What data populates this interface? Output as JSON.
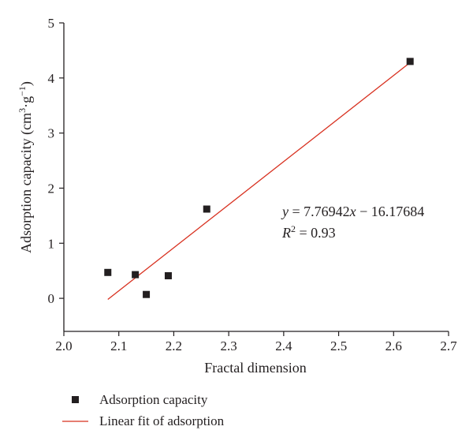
{
  "chart_data": {
    "type": "scatter",
    "xlabel": "Fractal dimension",
    "ylabel": {
      "prefix": "Adsorption capacity (cm",
      "sup1": "3",
      "mid": "·g",
      "sup2": "−1",
      "suffix": ")"
    },
    "xlim": [
      2.0,
      2.7
    ],
    "ylim": [
      -0.6,
      5
    ],
    "xticks": [
      "2.0",
      "2.1",
      "2.2",
      "2.3",
      "2.4",
      "2.5",
      "2.6",
      "2.7"
    ],
    "yticks": [
      "0",
      "1",
      "2",
      "3",
      "4",
      "5"
    ],
    "grid": false,
    "legend_position": "bottom-left, below the plot",
    "series": [
      {
        "name": "Adsorption capacity",
        "kind": "scatter",
        "marker": "square",
        "color": "#231f20",
        "points": [
          {
            "x": 2.08,
            "y": 0.47
          },
          {
            "x": 2.13,
            "y": 0.43
          },
          {
            "x": 2.15,
            "y": 0.07
          },
          {
            "x": 2.19,
            "y": 0.41
          },
          {
            "x": 2.26,
            "y": 1.62
          },
          {
            "x": 2.63,
            "y": 4.3
          }
        ]
      },
      {
        "name": "Linear fit of adsorption",
        "kind": "line",
        "color": "#d8301f",
        "points": [
          {
            "x": 2.08,
            "y": -0.02
          },
          {
            "x": 2.63,
            "y": 4.28
          }
        ]
      }
    ],
    "annotation": {
      "equation": {
        "y": "y",
        "eq": " = 7.76942",
        "x": "x",
        "rest": " − 16.17684"
      },
      "r2": {
        "r": "R",
        "sup": "2",
        "rest": " = 0.93"
      }
    }
  }
}
